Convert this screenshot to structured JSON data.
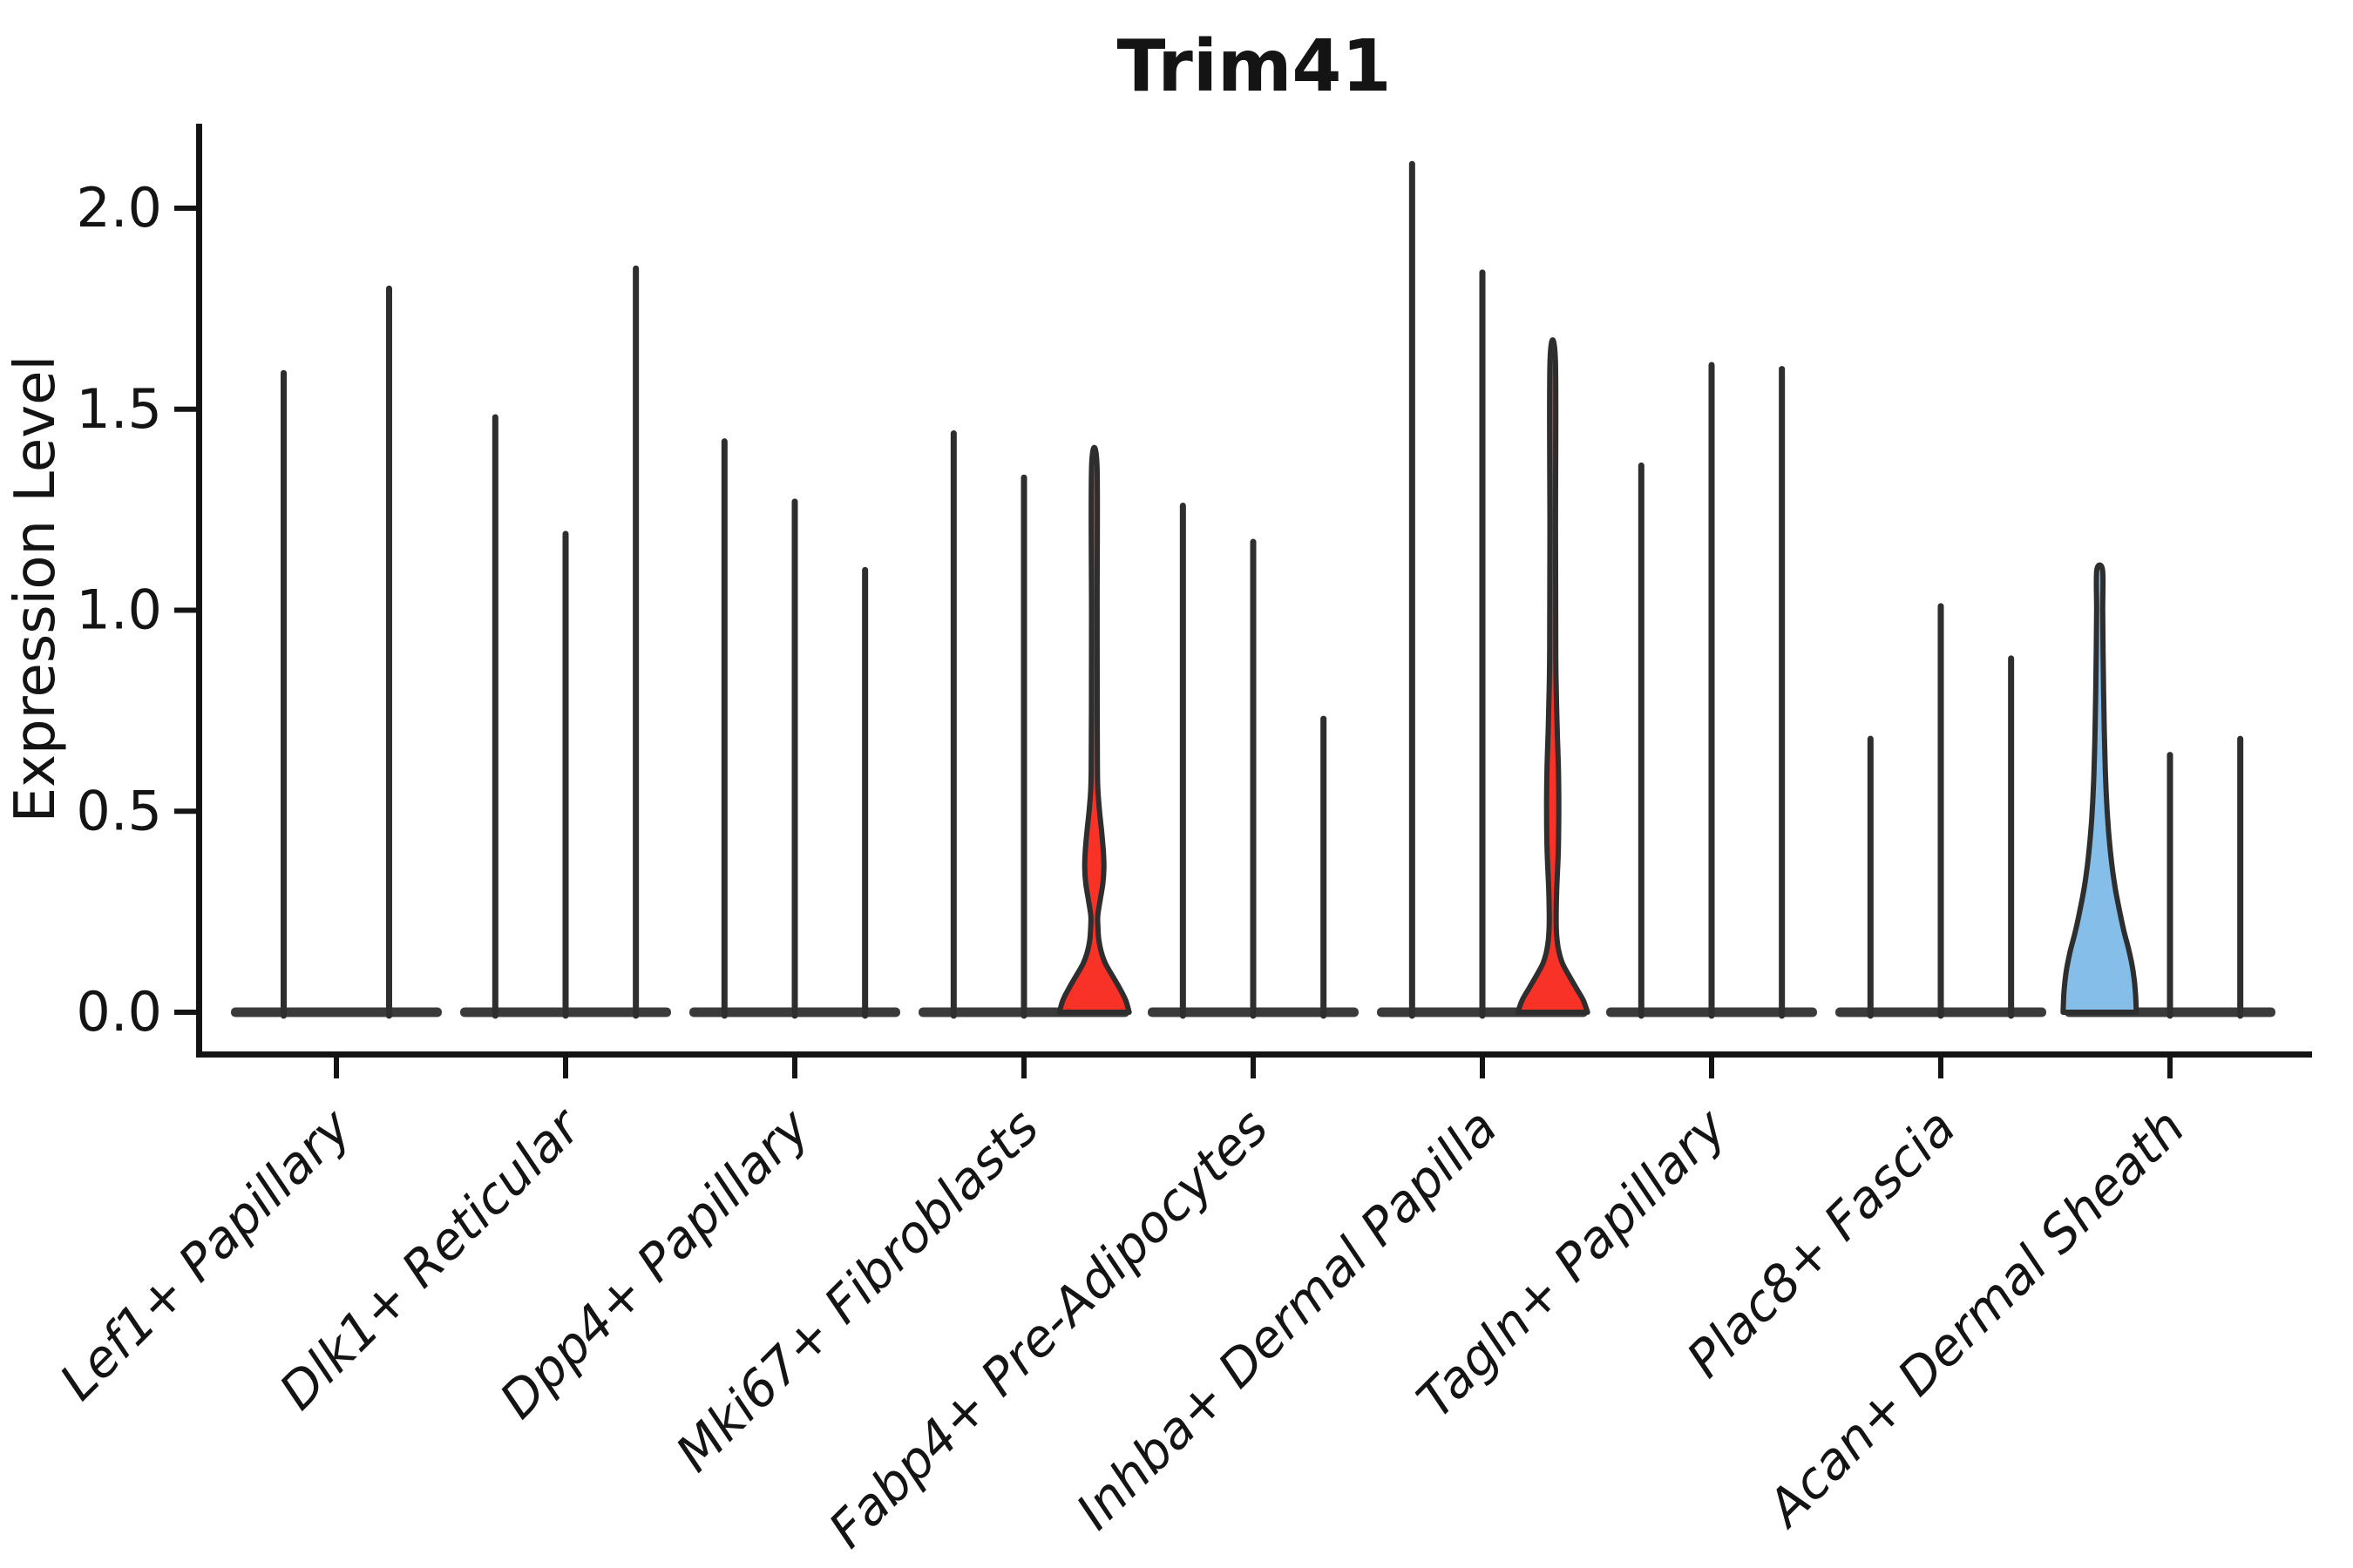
{
  "title": "Trim41",
  "ylabel": "Expression Level",
  "chart_data": {
    "type": "violin",
    "title": "Trim41",
    "xlabel": "",
    "ylabel": "Expression Level",
    "ylim": [
      0,
      2.21
    ],
    "yticks": [
      0.0,
      0.5,
      1.0,
      1.5,
      2.0
    ],
    "ytick_labels": [
      "0.0",
      "0.5",
      "1.0",
      "1.5",
      "2.0"
    ],
    "grid": false,
    "legend": "none",
    "categories": [
      "Lef1+ Papillary",
      "Dlk1+ Reticular",
      "Dpp4+ Papillary",
      "Mki67+ Fibroblasts",
      "Fabp4+ Pre-Adipocytes",
      "Inhba+ Dermal Papilla",
      "Tagln+ Papillary",
      "Plac8+ Fascia",
      "Acan+ Dermal Sheath"
    ],
    "groups": [
      {
        "category": "Lef1+ Papillary",
        "violins": [
          {
            "max": 1.59
          },
          {
            "max": 1.8
          }
        ]
      },
      {
        "category": "Dlk1+ Reticular",
        "violins": [
          {
            "max": 1.48
          },
          {
            "max": 1.19
          },
          {
            "max": 1.85
          }
        ]
      },
      {
        "category": "Dpp4+ Papillary",
        "violins": [
          {
            "max": 1.42
          },
          {
            "max": 1.27
          },
          {
            "max": 1.1
          }
        ]
      },
      {
        "category": "Mki67+ Fibroblasts",
        "violins": [
          {
            "max": 1.44
          },
          {
            "max": 1.33
          },
          {
            "max": 1.36,
            "fill": "#F93228",
            "profile": [
              [
                0,
                40
              ],
              [
                0.03,
                36
              ],
              [
                0.06,
                29
              ],
              [
                0.09,
                21
              ],
              [
                0.12,
                13
              ],
              [
                0.15,
                8
              ],
              [
                0.18,
                5.2
              ],
              [
                0.21,
                4.2
              ],
              [
                0.24,
                4.0
              ],
              [
                0.28,
                6.8
              ],
              [
                0.32,
                9.8
              ],
              [
                0.36,
                11
              ],
              [
                0.4,
                10.4
              ],
              [
                0.45,
                8.4
              ],
              [
                0.5,
                6.0
              ],
              [
                0.55,
                4.2
              ],
              [
                0.6,
                3.6
              ],
              [
                0.75,
                3.3
              ],
              [
                1.0,
                3.2
              ],
              [
                1.36,
                3.1
              ]
            ]
          }
        ]
      },
      {
        "category": "Fabp4+ Pre-Adipocytes",
        "violins": [
          {
            "max": 1.26
          },
          {
            "max": 1.17
          },
          {
            "max": 0.73
          }
        ]
      },
      {
        "category": "Inhba+ Dermal Papilla",
        "violins": [
          {
            "max": 2.11
          },
          {
            "max": 1.84
          },
          {
            "max": 1.62,
            "fill": "#F93228",
            "profile": [
              [
                0,
                40
              ],
              [
                0.03,
                35
              ],
              [
                0.06,
                27
              ],
              [
                0.09,
                19
              ],
              [
                0.12,
                11.5
              ],
              [
                0.15,
                7.2
              ],
              [
                0.18,
                5.0
              ],
              [
                0.22,
                4.0
              ],
              [
                0.3,
                4.5
              ],
              [
                0.4,
                6.4
              ],
              [
                0.5,
                7.0
              ],
              [
                0.6,
                6.6
              ],
              [
                0.7,
                5.2
              ],
              [
                0.8,
                4.1
              ],
              [
                0.9,
                3.5
              ],
              [
                1.2,
                3.2
              ],
              [
                1.62,
                3.1
              ]
            ]
          }
        ]
      },
      {
        "category": "Tagln+ Papillary",
        "violins": [
          {
            "max": 1.36
          },
          {
            "max": 1.61
          },
          {
            "max": 1.6
          }
        ]
      },
      {
        "category": "Plac8+ Fascia",
        "violins": [
          {
            "max": 0.68
          },
          {
            "max": 1.01
          },
          {
            "max": 0.88
          }
        ]
      },
      {
        "category": "Acan+ Dermal Sheath",
        "violins": [
          {
            "max": 1.1,
            "fill": "#85BEE9",
            "profile": [
              [
                0,
                42
              ],
              [
                0.05,
                41
              ],
              [
                0.1,
                38.5
              ],
              [
                0.15,
                34
              ],
              [
                0.2,
                28
              ],
              [
                0.25,
                23
              ],
              [
                0.3,
                18.5
              ],
              [
                0.35,
                15
              ],
              [
                0.4,
                12.3
              ],
              [
                0.45,
                10.2
              ],
              [
                0.5,
                8.6
              ],
              [
                0.55,
                7.4
              ],
              [
                0.6,
                6.5
              ],
              [
                0.7,
                5.3
              ],
              [
                0.8,
                4.5
              ],
              [
                0.9,
                3.9
              ],
              [
                1.0,
                3.5
              ],
              [
                1.1,
                3.3
              ]
            ]
          },
          {
            "max": 0.64
          },
          {
            "max": 0.68
          }
        ]
      }
    ],
    "colors": {
      "highlight_red": "#F93228",
      "highlight_blue": "#85BEE9",
      "violin_outline": "#2E2E2E",
      "zero_bar": "#3A3A3A",
      "axis": "#141414",
      "background": "#FFFFFF"
    }
  }
}
